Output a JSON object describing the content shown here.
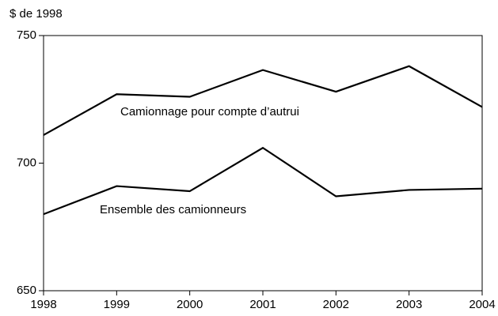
{
  "chart_data": {
    "type": "line",
    "y_label": "$ de 1998",
    "x": [
      1998,
      1999,
      2000,
      2001,
      2002,
      2003,
      2004
    ],
    "xlim": [
      1998,
      2004
    ],
    "xticks": [
      1998,
      1999,
      2000,
      2001,
      2002,
      2003,
      2004
    ],
    "ylim": [
      650,
      750
    ],
    "yticks": [
      650,
      700,
      750
    ],
    "grid": false,
    "series": [
      {
        "name": "Camionnage pour compte d’autrui",
        "color": "#000000",
        "values": [
          711,
          727,
          726,
          736.5,
          728,
          738,
          722
        ]
      },
      {
        "name": "Ensemble des camionneurs",
        "color": "#000000",
        "values": [
          680,
          691,
          689,
          706,
          687,
          689.5,
          690
        ]
      }
    ]
  }
}
